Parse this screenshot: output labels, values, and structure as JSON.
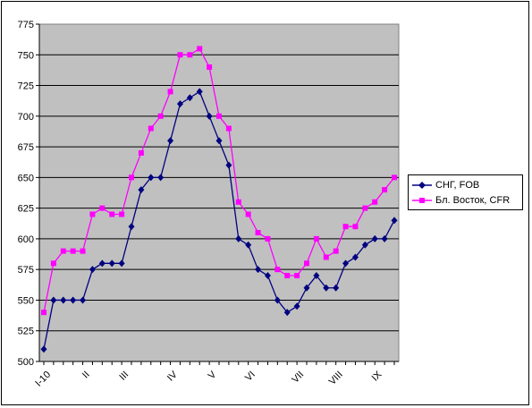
{
  "chart_data": {
    "type": "line",
    "title": "",
    "xlabel": "",
    "ylabel": "",
    "ylim": [
      500,
      775
    ],
    "yticks": [
      500,
      525,
      550,
      575,
      600,
      625,
      650,
      675,
      700,
      725,
      750,
      775
    ],
    "xticks": [
      {
        "label": "I-10",
        "at": 0
      },
      {
        "label": "II",
        "at": 4
      },
      {
        "label": "III",
        "at": 8
      },
      {
        "label": "IV",
        "at": 13
      },
      {
        "label": "V",
        "at": 17
      },
      {
        "label": "VI",
        "at": 21
      },
      {
        "label": "VII",
        "at": 26
      },
      {
        "label": "VIII",
        "at": 30
      },
      {
        "label": "IX",
        "at": 34
      }
    ],
    "grid": true,
    "legend_position": "right",
    "plot_background": "#c0c0c0",
    "series": [
      {
        "name": "СНГ, FOB",
        "color": "#000080",
        "marker": "diamond",
        "values": [
          510,
          550,
          550,
          550,
          550,
          575,
          580,
          580,
          580,
          610,
          640,
          650,
          650,
          680,
          710,
          715,
          720,
          700,
          680,
          660,
          600,
          595,
          575,
          570,
          550,
          540,
          545,
          560,
          570,
          560,
          560,
          580,
          585,
          595,
          600,
          600,
          615
        ]
      },
      {
        "name": "Бл. Восток, CFR",
        "color": "#ff00ff",
        "marker": "square",
        "values": [
          540,
          580,
          590,
          590,
          590,
          620,
          625,
          620,
          620,
          650,
          670,
          690,
          700,
          720,
          750,
          750,
          755,
          740,
          700,
          690,
          630,
          620,
          605,
          600,
          575,
          570,
          570,
          580,
          600,
          585,
          590,
          610,
          610,
          625,
          630,
          640,
          650
        ]
      }
    ]
  }
}
